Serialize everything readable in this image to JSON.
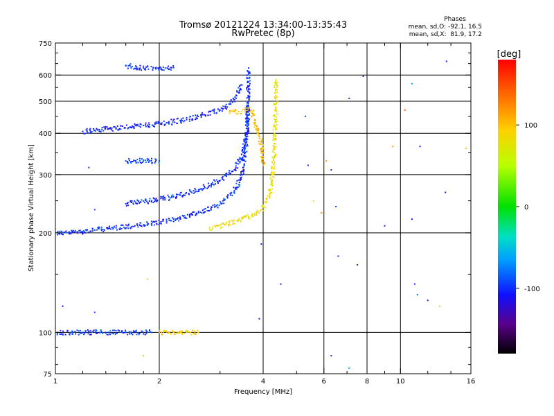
{
  "chart_data": {
    "type": "scatter",
    "title": "Tromsø 20121224 13:34:00-13:35:43",
    "subtitle": "RwPretec (8p)",
    "stats": {
      "heading": "Phases",
      "line1": "mean, sd,O: -92.1, 16.5",
      "line2": "mean, sd,X:  81.9, 17.2"
    },
    "xlabel": "Frequency [MHz]",
    "ylabel": "Stationary phase Virtual Height [km]",
    "x_scale": "log",
    "y_scale": "log",
    "xlim": [
      1,
      16
    ],
    "ylim": [
      75,
      750
    ],
    "x_ticks": [
      1,
      2,
      4,
      6,
      8,
      10,
      16
    ],
    "x_tick_labels": [
      "1",
      "2",
      "4",
      "6",
      "8",
      "10",
      "16"
    ],
    "x_minor_ticks": [
      1.2,
      1.4,
      1.6,
      1.8,
      3,
      5,
      7,
      9,
      12,
      14
    ],
    "x_gridlines": [
      2,
      4,
      6,
      8,
      10
    ],
    "y_ticks": [
      75,
      100,
      200,
      300,
      400,
      500,
      600,
      750
    ],
    "y_tick_labels": [
      "75",
      "100",
      "200",
      "300",
      "400",
      "500",
      "600",
      "750"
    ],
    "y_minor_ticks": [
      80,
      90,
      150,
      250,
      350,
      450,
      550,
      650,
      700
    ],
    "y_gridlines": [
      100,
      200,
      300,
      400,
      500,
      600
    ],
    "colorbar": {
      "label": "[deg]",
      "min": -180,
      "max": 180,
      "ticks": [
        100,
        0,
        -100
      ],
      "tick_labels": [
        "100",
        "0",
        "-100"
      ]
    },
    "traces": [
      {
        "name": "",
        "phase": -100,
        "points": [
          [
            1.0,
            200
          ],
          [
            1.1,
            200
          ],
          [
            1.3,
            204
          ],
          [
            1.5,
            207
          ],
          [
            1.7,
            210
          ],
          [
            1.9,
            213
          ],
          [
            2.1,
            217
          ],
          [
            2.3,
            222
          ],
          [
            2.6,
            230
          ],
          [
            2.9,
            240
          ],
          [
            3.1,
            252
          ],
          [
            3.3,
            268
          ],
          [
            3.45,
            290
          ],
          [
            3.55,
            340
          ],
          [
            3.6,
            420
          ],
          [
            3.62,
            520
          ],
          [
            3.63,
            630
          ]
        ]
      },
      {
        "name": "",
        "phase": -100,
        "points": [
          [
            1.6,
            245
          ],
          [
            1.9,
            250
          ],
          [
            2.2,
            257
          ],
          [
            2.6,
            270
          ],
          [
            3.0,
            288
          ],
          [
            3.3,
            310
          ],
          [
            3.5,
            350
          ],
          [
            3.58,
            400
          ],
          [
            3.62,
            480
          ]
        ]
      },
      {
        "name": "",
        "phase": -105,
        "points": [
          [
            1.2,
            405
          ],
          [
            1.5,
            415
          ],
          [
            1.8,
            422
          ],
          [
            2.1,
            430
          ],
          [
            2.4,
            440
          ],
          [
            2.7,
            455
          ],
          [
            3.0,
            470
          ],
          [
            3.2,
            490
          ],
          [
            3.35,
            520
          ],
          [
            3.45,
            560
          ]
        ]
      },
      {
        "name": "",
        "phase": -100,
        "points": [
          [
            1.6,
            640
          ],
          [
            1.8,
            630
          ],
          [
            2.0,
            630
          ],
          [
            2.2,
            632
          ]
        ]
      },
      {
        "name": "",
        "phase": -95,
        "points": [
          [
            1.6,
            330
          ],
          [
            1.8,
            330
          ],
          [
            2.0,
            330
          ]
        ]
      },
      {
        "name": "",
        "phase": -95,
        "points": [
          [
            1.0,
            100
          ],
          [
            1.2,
            100
          ],
          [
            1.4,
            100
          ],
          [
            1.6,
            100
          ],
          [
            1.8,
            100
          ],
          [
            1.9,
            100
          ]
        ]
      },
      {
        "name": "",
        "phase": 80,
        "points": [
          [
            2.8,
            205
          ],
          [
            3.1,
            212
          ],
          [
            3.4,
            218
          ],
          [
            3.7,
            225
          ],
          [
            3.95,
            235
          ],
          [
            4.1,
            248
          ],
          [
            4.2,
            268
          ],
          [
            4.26,
            300
          ],
          [
            4.3,
            350
          ],
          [
            4.33,
            420
          ],
          [
            4.35,
            520
          ],
          [
            4.36,
            580
          ]
        ]
      },
      {
        "name": "",
        "phase": 95,
        "points": [
          [
            2.0,
            100
          ],
          [
            2.2,
            100
          ],
          [
            2.4,
            100
          ],
          [
            2.6,
            100
          ]
        ]
      },
      {
        "name": "",
        "phase": 100,
        "points": [
          [
            3.2,
            460
          ],
          [
            3.4,
            465
          ],
          [
            3.55,
            470
          ],
          [
            3.7,
            470
          ],
          [
            3.95,
            370
          ],
          [
            4.0,
            320
          ]
        ]
      }
    ],
    "scatter_points": [
      {
        "x": 3.9,
        "y": 110,
        "phase": -110
      },
      {
        "x": 3.95,
        "y": 185,
        "phase": -100
      },
      {
        "x": 4.5,
        "y": 140,
        "phase": -100
      },
      {
        "x": 5.3,
        "y": 450,
        "phase": -95
      },
      {
        "x": 5.4,
        "y": 320,
        "phase": -100
      },
      {
        "x": 5.6,
        "y": 250,
        "phase": 80
      },
      {
        "x": 5.9,
        "y": 230,
        "phase": 120
      },
      {
        "x": 6.1,
        "y": 330,
        "phase": 120
      },
      {
        "x": 6.3,
        "y": 310,
        "phase": -100
      },
      {
        "x": 6.5,
        "y": 240,
        "phase": -95
      },
      {
        "x": 6.6,
        "y": 170,
        "phase": -100
      },
      {
        "x": 6.3,
        "y": 85,
        "phase": -100
      },
      {
        "x": 7.1,
        "y": 510,
        "phase": -100
      },
      {
        "x": 7.1,
        "y": 78,
        "phase": -60
      },
      {
        "x": 7.5,
        "y": 160,
        "phase": -100
      },
      {
        "x": 7.8,
        "y": 595,
        "phase": -100
      },
      {
        "x": 9.0,
        "y": 210,
        "phase": -110
      },
      {
        "x": 9.5,
        "y": 365,
        "phase": 120
      },
      {
        "x": 10.3,
        "y": 470,
        "phase": 150
      },
      {
        "x": 10.8,
        "y": 565,
        "phase": -60
      },
      {
        "x": 10.8,
        "y": 220,
        "phase": -110
      },
      {
        "x": 11.0,
        "y": 140,
        "phase": -100
      },
      {
        "x": 11.2,
        "y": 130,
        "phase": -80
      },
      {
        "x": 11.4,
        "y": 365,
        "phase": -110
      },
      {
        "x": 12.0,
        "y": 125,
        "phase": -110
      },
      {
        "x": 13.0,
        "y": 120,
        "phase": 100
      },
      {
        "x": 13.5,
        "y": 265,
        "phase": -110
      },
      {
        "x": 13.6,
        "y": 660,
        "phase": -120
      },
      {
        "x": 15.5,
        "y": 360,
        "phase": 100
      },
      {
        "x": 1.05,
        "y": 120,
        "phase": -110
      },
      {
        "x": 1.3,
        "y": 115,
        "phase": -90
      },
      {
        "x": 1.25,
        "y": 315,
        "phase": -100
      },
      {
        "x": 1.3,
        "y": 235,
        "phase": -90
      },
      {
        "x": 1.85,
        "y": 145,
        "phase": 100
      },
      {
        "x": 1.8,
        "y": 85,
        "phase": 100
      }
    ]
  }
}
